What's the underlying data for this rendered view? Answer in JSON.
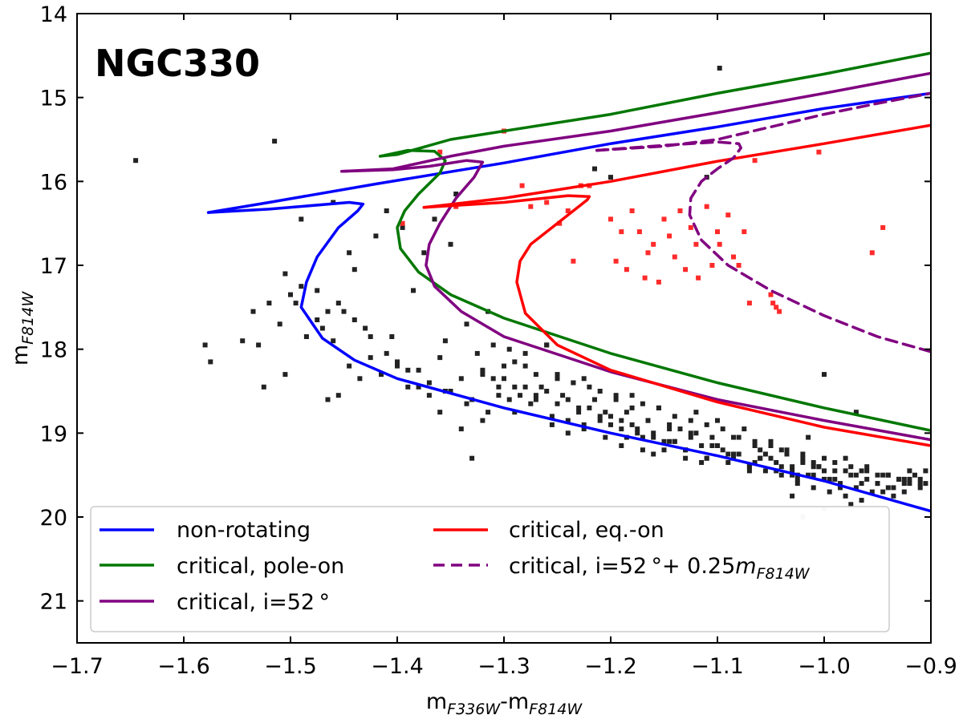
{
  "chart_data": {
    "type": "scatter",
    "title": "NGC330",
    "xlabel": {
      "main": "m",
      "sub1": "F336W",
      "mid": "-m",
      "sub2": "F814W"
    },
    "ylabel": {
      "main": "m",
      "sub": "F814W"
    },
    "xlim": [
      -1.7,
      -0.9
    ],
    "ylim": [
      21.5,
      14.0
    ],
    "y_inverted": true,
    "xticks": [
      -1.7,
      -1.6,
      -1.5,
      -1.4,
      -1.3,
      -1.2,
      -1.1,
      -1.0,
      -0.9
    ],
    "xtick_labels": [
      "−1.7",
      "−1.6",
      "−1.5",
      "−1.4",
      "−1.3",
      "−1.2",
      "−1.1",
      "−1.0",
      "−0.9"
    ],
    "yticks": [
      14,
      15,
      16,
      17,
      18,
      19,
      20,
      21
    ],
    "ytick_labels": [
      "14",
      "15",
      "16",
      "17",
      "18",
      "19",
      "20",
      "21"
    ],
    "grid": false,
    "legend_position": "bottom",
    "series": [
      {
        "name": "non-rotating",
        "label": "non-rotating",
        "color": "#0000ff",
        "style": "solid",
        "x": [
          -0.9,
          -1.0,
          -1.1,
          -1.2,
          -1.3,
          -1.4,
          -1.44,
          -1.47,
          -1.49,
          -1.485,
          -1.475,
          -1.455,
          -1.437,
          -1.432,
          -1.445,
          -1.52,
          -1.577
        ],
        "y": [
          19.93,
          19.57,
          19.27,
          19.0,
          18.7,
          18.35,
          18.13,
          17.87,
          17.5,
          17.2,
          16.9,
          16.55,
          16.35,
          16.27,
          16.25,
          16.33,
          16.37
        ]
      },
      {
        "name": "non-rotating-upper",
        "color": "#0000ff",
        "style": "solid",
        "x": [
          -1.577,
          -1.52,
          -1.42,
          -1.3,
          -1.2,
          -1.1,
          -1.0,
          -0.9
        ],
        "y": [
          16.37,
          16.25,
          16.03,
          15.78,
          15.55,
          15.35,
          15.13,
          14.95
        ]
      },
      {
        "name": "critical-pole-on",
        "label": "critical, pole-on",
        "color": "#007700",
        "style": "solid",
        "x": [
          -0.9,
          -1.0,
          -1.1,
          -1.2,
          -1.3,
          -1.35,
          -1.38,
          -1.397,
          -1.4,
          -1.393,
          -1.38,
          -1.36,
          -1.355,
          -1.365,
          -1.39,
          -1.416
        ],
        "y": [
          18.97,
          18.7,
          18.4,
          18.05,
          17.63,
          17.35,
          17.08,
          16.8,
          16.55,
          16.35,
          16.15,
          15.9,
          15.75,
          15.64,
          15.63,
          15.7
        ]
      },
      {
        "name": "critical-pole-on-upper",
        "color": "#007700",
        "style": "solid",
        "x": [
          -1.416,
          -1.4,
          -1.35,
          -1.3,
          -1.2,
          -1.1,
          -1.0,
          -0.9
        ],
        "y": [
          15.7,
          15.68,
          15.5,
          15.4,
          15.2,
          14.95,
          14.72,
          14.47
        ]
      },
      {
        "name": "critical-i52",
        "label": "critical, i=52 °",
        "color": "#800080",
        "style": "solid",
        "x": [
          -0.9,
          -1.0,
          -1.1,
          -1.2,
          -1.3,
          -1.34,
          -1.365,
          -1.373,
          -1.37,
          -1.36,
          -1.345,
          -1.328,
          -1.32,
          -1.335,
          -1.37,
          -1.404,
          -1.452
        ],
        "y": [
          19.08,
          18.85,
          18.6,
          18.27,
          17.85,
          17.55,
          17.25,
          17.0,
          16.75,
          16.5,
          16.2,
          15.95,
          15.77,
          15.75,
          15.82,
          15.86,
          15.88
        ]
      },
      {
        "name": "critical-i52-upper",
        "color": "#800080",
        "style": "solid",
        "x": [
          -1.452,
          -1.404,
          -1.35,
          -1.3,
          -1.2,
          -1.1,
          -1.0,
          -0.9
        ],
        "y": [
          15.88,
          15.85,
          15.7,
          15.58,
          15.4,
          15.18,
          14.95,
          14.71
        ]
      },
      {
        "name": "critical-eq-on",
        "label": "critical, eq.-on",
        "color": "#ff0000",
        "style": "solid",
        "x": [
          -0.9,
          -1.0,
          -1.1,
          -1.2,
          -1.25,
          -1.28,
          -1.288,
          -1.285,
          -1.275,
          -1.255,
          -1.235,
          -1.222,
          -1.22,
          -1.24,
          -1.3,
          -1.375
        ],
        "y": [
          19.15,
          18.93,
          18.63,
          18.25,
          17.95,
          17.57,
          17.2,
          16.95,
          16.75,
          16.55,
          16.35,
          16.22,
          16.18,
          16.17,
          16.25,
          16.31
        ]
      },
      {
        "name": "critical-eq-on-upper",
        "color": "#ff0000",
        "style": "solid",
        "x": [
          -1.375,
          -1.3,
          -1.2,
          -1.1,
          -1.0,
          -0.9
        ],
        "y": [
          16.31,
          16.2,
          16.0,
          15.76,
          15.55,
          15.33
        ]
      },
      {
        "name": "critical-i52-shift",
        "label": "critical, i=52 °+ 0.25",
        "label_math": "m",
        "label_sub": "F814W",
        "color": "#800080",
        "style": "dashed",
        "x": [
          -0.9,
          -0.95,
          -1.0,
          -1.05,
          -1.09,
          -1.115,
          -1.126,
          -1.125,
          -1.115,
          -1.1,
          -1.085,
          -1.078,
          -1.08,
          -1.1,
          -1.15,
          -1.213
        ],
        "y": [
          18.03,
          17.85,
          17.6,
          17.3,
          17.0,
          16.7,
          16.4,
          16.2,
          16.0,
          15.85,
          15.72,
          15.6,
          15.55,
          15.53,
          15.57,
          15.63
        ]
      },
      {
        "name": "critical-i52-shift-upper",
        "color": "#800080",
        "style": "dashed",
        "x": [
          -1.213,
          -1.15,
          -1.1,
          -1.05,
          -1.0,
          -0.95,
          -0.9
        ],
        "y": [
          15.63,
          15.58,
          15.5,
          15.35,
          15.2,
          15.07,
          14.95
        ]
      }
    ],
    "red_points": {
      "color": "#ff2a2a",
      "x": [
        -1.36,
        -1.345,
        -1.3,
        -1.283,
        -1.275,
        -1.26,
        -1.248,
        -1.235,
        -1.228,
        -1.22,
        -1.2,
        -1.195,
        -1.19,
        -1.185,
        -1.18,
        -1.173,
        -1.168,
        -1.165,
        -1.16,
        -1.155,
        -1.15,
        -1.145,
        -1.14,
        -1.135,
        -1.13,
        -1.125,
        -1.12,
        -1.118,
        -1.11,
        -1.105,
        -1.1,
        -1.098,
        -1.09,
        -1.085,
        -1.08,
        -1.075,
        -1.07,
        -1.065,
        -1.05,
        -1.048,
        -1.045,
        -1.042,
        -1.005,
        -0.955,
        -0.945,
        -1.395,
        -1.24
      ],
      "y": [
        15.65,
        16.3,
        15.4,
        16.05,
        16.3,
        16.25,
        16.5,
        16.95,
        16.05,
        16.05,
        16.45,
        16.95,
        16.6,
        17.05,
        16.35,
        16.6,
        17.15,
        16.85,
        16.75,
        17.2,
        16.45,
        16.65,
        16.9,
        16.35,
        17.05,
        16.55,
        16.75,
        17.15,
        16.3,
        17.0,
        16.6,
        16.75,
        16.4,
        16.9,
        17.0,
        16.6,
        17.45,
        15.75,
        17.35,
        17.45,
        17.5,
        17.55,
        15.65,
        16.85,
        16.55,
        16.5,
        16.35
      ]
    },
    "black_points": {
      "color": "#222222",
      "x": [
        -1.645,
        -1.515,
        -1.58,
        -1.575,
        -1.545,
        -1.535,
        -1.525,
        -1.51,
        -1.505,
        -1.495,
        -1.49,
        -1.475,
        -1.47,
        -1.465,
        -1.46,
        -1.455,
        -1.45,
        -1.445,
        -1.44,
        -1.435,
        -1.43,
        -1.425,
        -1.42,
        -1.415,
        -1.41,
        -1.405,
        -1.4,
        -1.395,
        -1.39,
        -1.385,
        -1.38,
        -1.375,
        -1.37,
        -1.365,
        -1.36,
        -1.355,
        -1.35,
        -1.345,
        -1.34,
        -1.335,
        -1.33,
        -1.325,
        -1.32,
        -1.315,
        -1.31,
        -1.305,
        -1.3,
        -1.295,
        -1.29,
        -1.285,
        -1.28,
        -1.275,
        -1.27,
        -1.265,
        -1.26,
        -1.255,
        -1.25,
        -1.245,
        -1.24,
        -1.235,
        -1.23,
        -1.225,
        -1.22,
        -1.215,
        -1.21,
        -1.205,
        -1.2,
        -1.195,
        -1.19,
        -1.185,
        -1.18,
        -1.175,
        -1.17,
        -1.165,
        -1.16,
        -1.155,
        -1.15,
        -1.145,
        -1.14,
        -1.135,
        -1.13,
        -1.125,
        -1.12,
        -1.115,
        -1.11,
        -1.105,
        -1.1,
        -1.095,
        -1.09,
        -1.085,
        -1.08,
        -1.075,
        -1.07,
        -1.065,
        -1.06,
        -1.055,
        -1.05,
        -1.045,
        -1.04,
        -1.035,
        -1.03,
        -1.025,
        -1.02,
        -1.015,
        -1.01,
        -1.005,
        -1.0,
        -0.995,
        -0.99,
        -0.985,
        -0.98,
        -0.975,
        -0.97,
        -0.965,
        -0.96,
        -0.955,
        -0.95,
        -0.945,
        -0.94,
        -0.935,
        -0.93,
        -0.925,
        -0.92,
        -0.915,
        -0.91,
        -0.905,
        -1.098,
        -1.2,
        -1.215,
        -1.11,
        -1.46,
        -1.49,
        -1.35,
        -1.445,
        -1.505,
        -1.5,
        -1.52,
        -1.53,
        -1.485,
        -1.475,
        -1.465,
        -1.455,
        -1.44,
        -1.425,
        -1.41,
        -1.39,
        -1.37,
        -1.355,
        -1.335,
        -1.32,
        -1.305,
        -1.29,
        -1.27,
        -1.255,
        -1.24,
        -1.225,
        -1.205,
        -1.19,
        -1.175,
        -1.16,
        -1.145,
        -1.13,
        -1.115,
        -1.1,
        -1.085,
        -1.07,
        -1.055,
        -1.04,
        -1.025,
        -1.01,
        -0.995,
        -0.98,
        -0.965,
        -0.95,
        -0.935,
        -0.92,
        -0.905,
        -1.185,
        -1.165,
        -1.145,
        -1.125,
        -1.105,
        -1.085,
        -1.065,
        -1.045,
        -1.025,
        -1.005,
        -0.985,
        -0.965,
        -0.945,
        -0.925,
        -1.3,
        -1.28,
        -1.26,
        -1.24,
        -1.22,
        -1.2,
        -1.18,
        -1.16,
        -1.14,
        -1.12,
        -1.1,
        -1.08,
        -1.06,
        -1.04,
        -1.02,
        -1.0,
        -0.98,
        -0.96,
        -0.94,
        -0.92,
        -1.32,
        -1.31,
        -1.29,
        -1.27,
        -1.25,
        -1.23,
        -1.21,
        -1.19,
        -1.17,
        -1.15,
        -1.13,
        -1.11,
        -1.09,
        -1.07,
        -1.05,
        -1.03,
        -1.01,
        -0.99,
        -0.97,
        -0.95,
        -0.93,
        -0.91,
        -1.4,
        -1.38,
        -1.36,
        -1.34,
        -1.33,
        -1.315,
        -1.295,
        -1.28,
        -1.26,
        -1.25,
        -1.235,
        -1.225,
        -1.21,
        -1.195,
        -1.18,
        -1.17,
        -1.155,
        -1.14,
        -1.125,
        -1.11,
        -1.095,
        -1.08,
        -1.065,
        -1.05,
        -1.035,
        -1.02,
        -1.0,
        -0.99,
        -0.975,
        -0.96,
        -0.94,
        -0.925,
        -0.91,
        -1.015,
        -1.03,
        -1.06,
        -1.03,
        -0.97,
        -1.0,
        -1.01,
        -0.975
      ],
      "y": [
        15.75,
        15.52,
        17.95,
        18.15,
        17.9,
        17.55,
        18.45,
        17.7,
        18.3,
        17.45,
        17.25,
        17.3,
        17.75,
        18.6,
        17.9,
        18.55,
        17.55,
        18.2,
        17.05,
        18.35,
        17.75,
        18.1,
        16.65,
        18.3,
        16.35,
        17.85,
        18.15,
        16.55,
        18.45,
        17.3,
        18.25,
        16.85,
        18.55,
        16.45,
        18.1,
        17.9,
        18.5,
        16.15,
        18.35,
        17.7,
        18.6,
        18.05,
        18.3,
        18.75,
        17.95,
        18.45,
        18.2,
        18.6,
        18.15,
        18.55,
        18.05,
        18.65,
        18.3,
        18.45,
        17.95,
        18.8,
        18.35,
        18.55,
        18.85,
        18.4,
        18.7,
        18.95,
        18.45,
        18.6,
        18.8,
        18.75,
        18.9,
        18.55,
        18.85,
        19.05,
        18.7,
        18.95,
        19.2,
        18.85,
        19.05,
        18.7,
        19.2,
        18.9,
        19.1,
        18.95,
        19.3,
        19.0,
        18.75,
        19.15,
        19.3,
        19.05,
        18.85,
        19.2,
        19.35,
        19.05,
        19.25,
        18.95,
        19.4,
        19.15,
        19.3,
        19.45,
        19.1,
        19.35,
        19.5,
        19.25,
        19.45,
        19.6,
        19.3,
        19.5,
        19.65,
        19.4,
        19.55,
        19.7,
        19.45,
        19.6,
        19.75,
        19.5,
        19.65,
        19.8,
        19.55,
        19.7,
        19.6,
        19.5,
        19.65,
        19.75,
        19.55,
        19.7,
        19.6,
        19.5,
        19.55,
        19.45,
        14.65,
        15.95,
        15.85,
        15.95,
        16.25,
        16.45,
        16.75,
        16.85,
        17.1,
        17.35,
        17.45,
        17.95,
        17.85,
        17.65,
        17.55,
        17.45,
        17.65,
        17.85,
        18.05,
        18.25,
        18.4,
        18.5,
        18.65,
        18.85,
        18.55,
        18.75,
        18.6,
        18.9,
        19.0,
        18.9,
        19.05,
        19.15,
        19.0,
        19.25,
        19.1,
        19.2,
        19.35,
        19.15,
        19.3,
        19.45,
        19.25,
        19.4,
        19.5,
        19.35,
        19.55,
        19.45,
        19.6,
        19.5,
        19.65,
        19.55,
        19.6,
        18.75,
        18.85,
        18.95,
        19.05,
        19.15,
        19.25,
        19.35,
        19.45,
        19.55,
        19.4,
        19.65,
        19.45,
        19.7,
        19.6,
        18.35,
        18.45,
        18.5,
        18.6,
        18.7,
        18.8,
        18.9,
        19.0,
        19.1,
        19.0,
        19.15,
        19.25,
        19.3,
        19.2,
        19.35,
        19.45,
        19.3,
        19.4,
        19.5,
        19.45,
        18.25,
        18.35,
        18.45,
        18.55,
        18.65,
        18.75,
        18.85,
        18.95,
        19.05,
        19.1,
        19.2,
        19.3,
        19.25,
        19.4,
        19.3,
        19.5,
        19.4,
        19.55,
        19.5,
        19.6,
        19.55,
        19.65,
        18.2,
        18.45,
        18.75,
        18.95,
        19.3,
        17.55,
        18.0,
        18.2,
        17.95,
        18.3,
        18.4,
        18.35,
        18.5,
        18.6,
        18.55,
        18.65,
        18.7,
        18.8,
        18.85,
        18.9,
        18.95,
        19.05,
        19.1,
        19.15,
        19.2,
        19.25,
        19.3,
        19.35,
        19.4,
        19.45,
        19.5,
        19.55,
        19.6,
        19.05,
        19.75,
        19.2,
        19.4,
        18.75,
        18.3,
        19.5,
        19.85
      ]
    },
    "faint_points": {
      "color": "#bbbbbb",
      "x": [
        -1.02,
        -1.0
      ],
      "y": [
        20.0,
        19.9
      ]
    },
    "legend": {
      "left_column": [
        "non-rotating",
        "critical, pole-on",
        "critical, i=52 °"
      ],
      "right_column": [
        "critical, eq.-on",
        "critical, i=52 °+ 0.25"
      ]
    }
  }
}
